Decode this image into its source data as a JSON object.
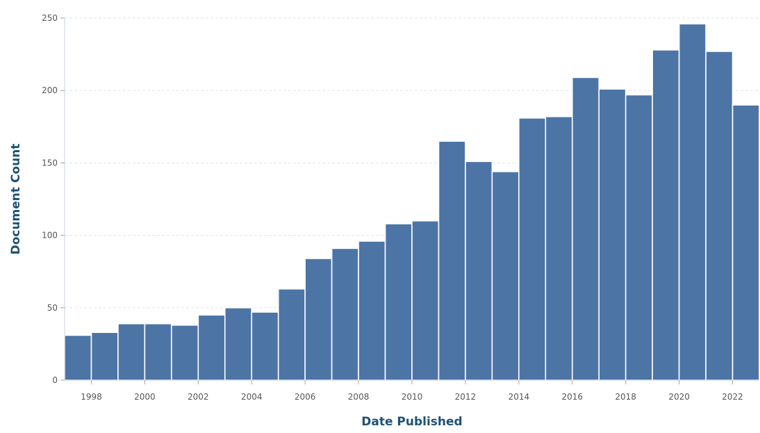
{
  "chart_data": {
    "type": "bar",
    "xlabel": "Date Published",
    "ylabel": "Document Count",
    "ylim": [
      0,
      250
    ],
    "yticks": [
      0,
      50,
      100,
      150,
      200,
      250
    ],
    "grid": true,
    "legend": "none",
    "bar_color": "#4c75a6",
    "categories": [
      "1997",
      "1998",
      "1999",
      "2000",
      "2001",
      "2002",
      "2003",
      "2004",
      "2005",
      "2006",
      "2007",
      "2008",
      "2009",
      "2010",
      "2011",
      "2012",
      "2013",
      "2014",
      "2015",
      "2016",
      "2017",
      "2018",
      "2019",
      "2020",
      "2021",
      "2022"
    ],
    "values": [
      31,
      33,
      39,
      39,
      38,
      45,
      50,
      47,
      63,
      84,
      91,
      96,
      108,
      110,
      165,
      151,
      144,
      181,
      182,
      209,
      201,
      197,
      228,
      246,
      227,
      190
    ],
    "xtick_labels": [
      "1998",
      "2000",
      "2002",
      "2004",
      "2006",
      "2008",
      "2010",
      "2012",
      "2014",
      "2016",
      "2018",
      "2020",
      "2022"
    ]
  }
}
